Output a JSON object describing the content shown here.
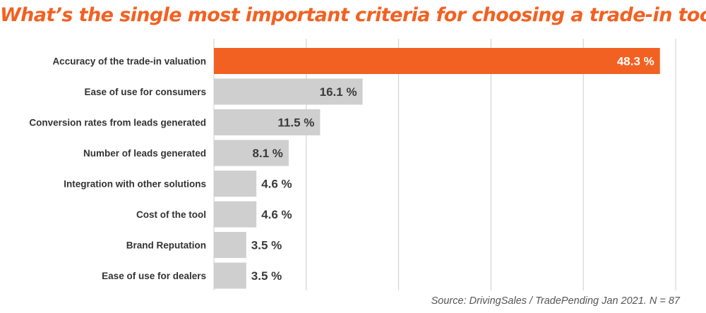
{
  "colors": {
    "accent": "#f26122",
    "bar": "#cfcfcf",
    "grid": "#cccccc",
    "value_dark": "#3b3b3b",
    "value_light": "#ffffff"
  },
  "chart_data": {
    "type": "bar",
    "orientation": "horizontal",
    "title": "What’s the single most important criteria for choosing a trade-in tool?",
    "source": "Source: DrivingSales / TradePending Jan 2021. N = 87",
    "categories": [
      "Accuracy of the trade-in valuation",
      "Ease of use for consumers",
      "Conversion rates from leads generated",
      "Number of leads generated",
      "Integration with other solutions",
      "Cost of the tool",
      "Brand Reputation",
      "Ease of use for dealers"
    ],
    "values": [
      48.3,
      16.1,
      11.5,
      8.1,
      4.6,
      4.6,
      3.5,
      3.5
    ],
    "value_labels": [
      "48.3 %",
      "16.1 %",
      "11.5 %",
      "8.1 %",
      "4.6 %",
      "4.6 %",
      "3.5 %",
      "3.5 %"
    ],
    "highlight_index": 0,
    "xlim": [
      0,
      50
    ],
    "grid": true,
    "legend": "none"
  }
}
